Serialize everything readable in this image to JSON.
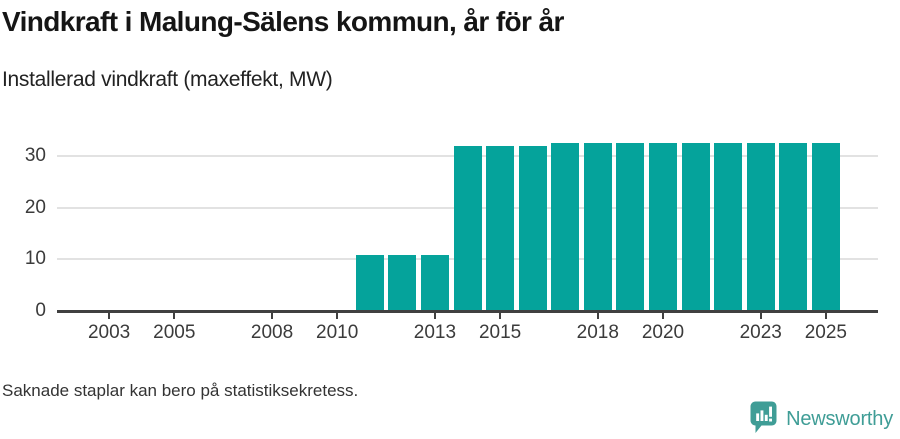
{
  "header": {
    "title": "Vindkraft i Malung-Sälens kommun, år för år",
    "subtitle": "Installerad vindkraft (maxeffekt, MW)"
  },
  "chart_data": {
    "type": "bar",
    "title": "Vindkraft i Malung-Sälens kommun, år för år",
    "subtitle": "Installerad vindkraft (maxeffekt, MW)",
    "xlabel": "",
    "ylabel": "MW",
    "categories": [
      2011,
      2012,
      2013,
      2014,
      2015,
      2016,
      2017,
      2018,
      2019,
      2020,
      2021,
      2022,
      2023,
      2024,
      2025
    ],
    "values": [
      10.8,
      10.8,
      10.8,
      32.0,
      32.0,
      32.0,
      32.6,
      32.6,
      32.6,
      32.6,
      32.6,
      32.6,
      32.6,
      32.6,
      32.6
    ],
    "x_tick_labels": [
      2003,
      2005,
      2008,
      2010,
      2013,
      2015,
      2018,
      2020,
      2023,
      2025
    ],
    "y_tick_labels": [
      0,
      10,
      20,
      30
    ],
    "xlim": [
      2001.4,
      2026.6
    ],
    "ylim": [
      0,
      34.1
    ],
    "grid": "horizontal",
    "legend_position": "none",
    "bar_color": "#05a39b",
    "axis_color": "#404040",
    "grid_color": "#e2e2e2",
    "tick_label_color": "#3b3b3b"
  },
  "footer": {
    "note": "Saknade staplar kan bero på statistiksekretess.",
    "logo": {
      "text": "Newsworthy",
      "color": "#3f9d96"
    }
  }
}
